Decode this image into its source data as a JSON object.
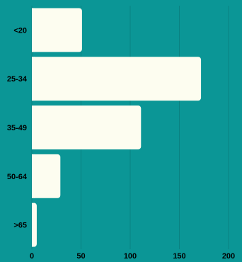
{
  "chart_data": {
    "type": "bar",
    "orientation": "horizontal",
    "categories": [
      "<20",
      "25-34",
      "35-49",
      "50-64",
      ">65"
    ],
    "values": [
      51,
      172,
      111,
      29,
      5
    ],
    "xlim": [
      0,
      200
    ],
    "xticks": [
      0,
      50,
      100,
      150,
      200
    ],
    "grid": "vertical",
    "legend": "none",
    "title": "",
    "xlabel": "",
    "ylabel": ""
  },
  "colors": {
    "background": "#0b9696",
    "bar": "#fdfdf0",
    "grid": "#0a8282",
    "text": "#000000"
  }
}
